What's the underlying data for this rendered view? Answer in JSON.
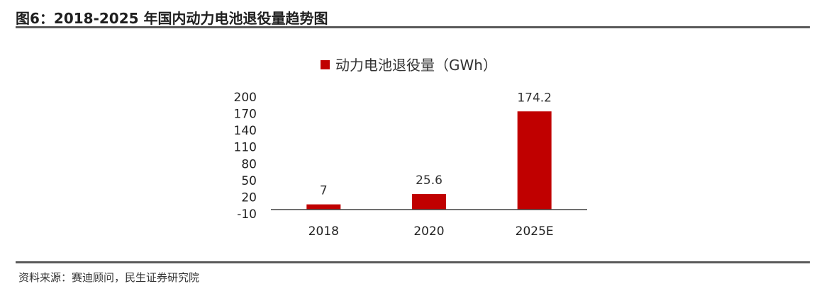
{
  "figure": {
    "title": "图6：2018-2025 年国内动力电池退役量趋势图",
    "source": "资料来源：赛迪顾问，民生证券研究院"
  },
  "colors": {
    "bar": "#c00000",
    "axis": "#404040",
    "rule": "#5a5a5a"
  },
  "chart_data": {
    "type": "bar",
    "title": "",
    "xlabel": "",
    "ylabel": "",
    "categories": [
      "2018",
      "2020",
      "2025E"
    ],
    "series": [
      {
        "name": "动力电池退役量（GWh）",
        "values": [
          7,
          25.6,
          174.2
        ],
        "data_labels": [
          "7",
          "25.6",
          "174.2"
        ]
      }
    ],
    "y_ticks": [
      200,
      170,
      140,
      110,
      80,
      50,
      20,
      -10
    ],
    "ylim": [
      -10,
      200
    ],
    "grid": false,
    "legend": "top-center"
  }
}
